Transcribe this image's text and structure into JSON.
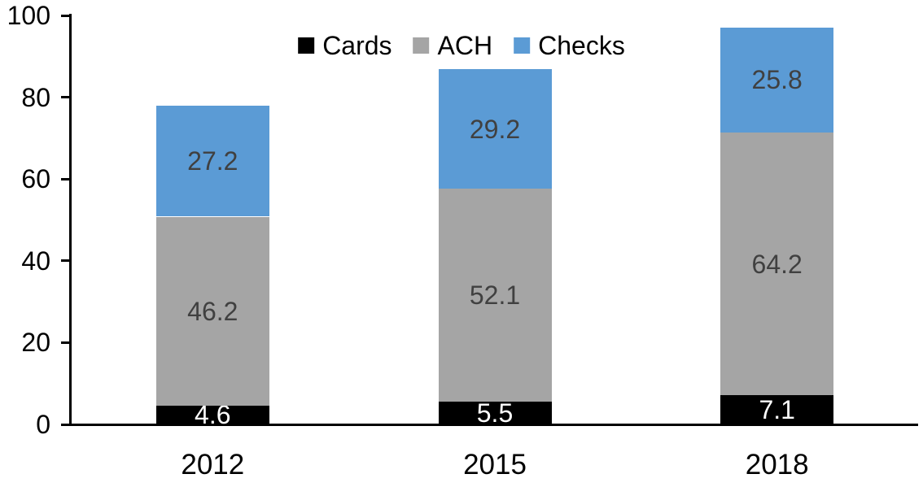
{
  "chart_data": {
    "type": "bar",
    "stacked": true,
    "title": "",
    "xlabel": "",
    "ylabel": "",
    "categories": [
      "2012",
      "2015",
      "2018"
    ],
    "series": [
      {
        "name": "Cards",
        "color": "#000000",
        "label_color": "#ffffff",
        "values": [
          4.6,
          5.5,
          7.1
        ]
      },
      {
        "name": "ACH",
        "color": "#a5a5a5",
        "label_color": "#404040",
        "values": [
          46.2,
          52.1,
          64.2
        ]
      },
      {
        "name": "Checks",
        "color": "#5b9bd5",
        "label_color": "#404040",
        "values": [
          27.2,
          29.2,
          25.8
        ]
      }
    ],
    "totals": [
      78.0,
      86.8,
      97.1
    ],
    "ylim": [
      0,
      100
    ],
    "yticks": [
      0,
      20,
      40,
      60,
      80,
      100
    ],
    "grid": false,
    "legend_position": "top",
    "axis_color": "#000000"
  }
}
